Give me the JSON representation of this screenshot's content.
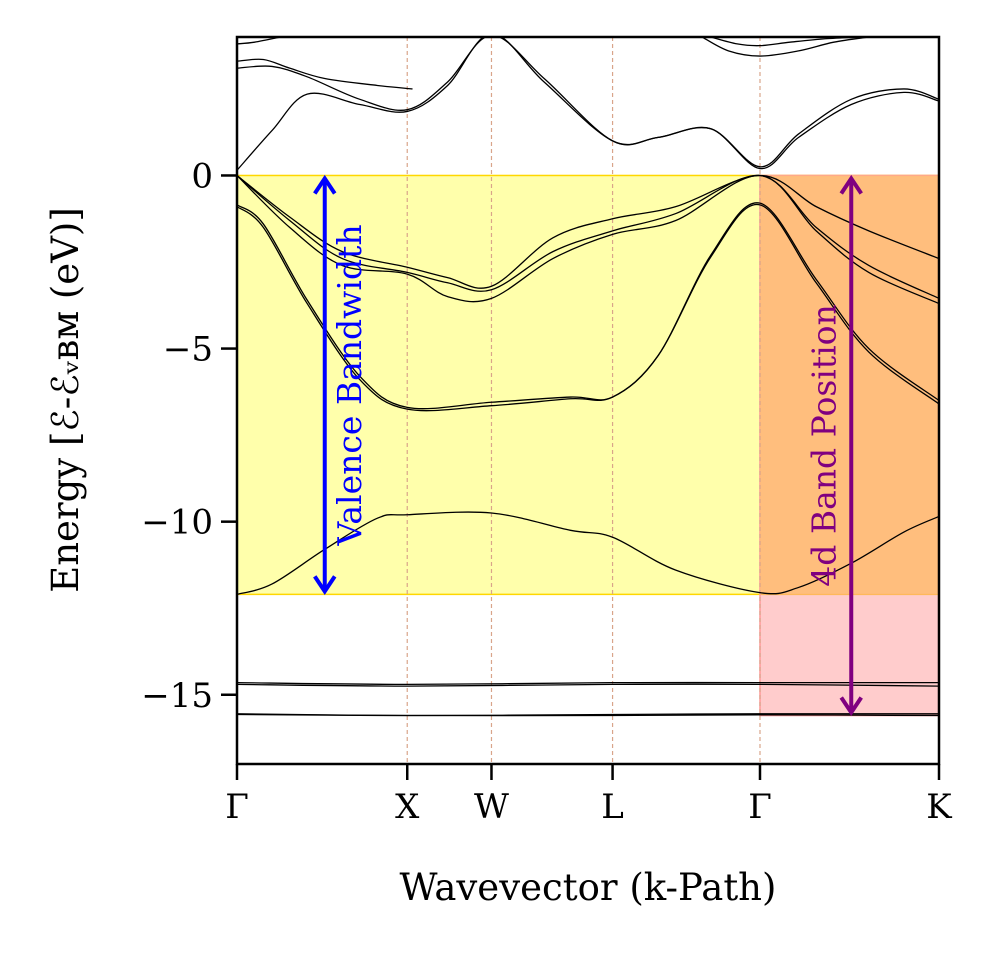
{
  "chart_data": {
    "type": "line",
    "title": "",
    "xlabel": "Wavevector (k-Path)",
    "ylabel": "Energy [ℰ-ℰᵥʙᴍ (eV)]",
    "ylim": [
      -17,
      4
    ],
    "xlim": [
      0,
      4.0
    ],
    "grid": false,
    "k_ticks": [
      {
        "label": "Γ",
        "x": 0.0
      },
      {
        "label": "X",
        "x": 0.97
      },
      {
        "label": "W",
        "x": 1.45
      },
      {
        "label": "L",
        "x": 2.14
      },
      {
        "label": "Γ",
        "x": 2.98
      },
      {
        "label": "K",
        "x": 4.0
      }
    ],
    "y_ticks": [
      {
        "label": "0",
        "value": 0
      },
      {
        "label": "−5",
        "value": -5
      },
      {
        "label": "−10",
        "value": -10
      },
      {
        "label": "−15",
        "value": -15
      }
    ],
    "colors": {
      "axes": "#000000",
      "band": "#000000",
      "k_line": "#d9a48a",
      "valence_fill": "#ffff66",
      "valence_edge": "#ffd700",
      "d_fill": "#ff9999",
      "d_overlap_fill": "#ffbb77",
      "valence_arrow": "#0000ff",
      "d_arrow": "#800080"
    },
    "regions": [
      {
        "name": "valence-band-region",
        "x0": 0.0,
        "x1": 4.0,
        "y0": -12.1,
        "y1": 0
      },
      {
        "name": "4d-band-region",
        "x0": 2.98,
        "x1": 4.0,
        "y0": -15.6,
        "y1": 0
      }
    ],
    "annotations": [
      {
        "text": "Valence Bandwidth",
        "x": 0.5,
        "y_top": 0,
        "y_bottom": -12.1,
        "color": "#0000ff"
      },
      {
        "text": "4d Band Position",
        "x": 3.5,
        "y_top": 0,
        "y_bottom": -15.6,
        "color": "#800080"
      }
    ],
    "series": [
      {
        "name": "semicore-1",
        "x": [
          0,
          0.97,
          2.14,
          2.98,
          4.0
        ],
        "y": [
          -15.55,
          -15.6,
          -15.57,
          -15.55,
          -15.55
        ]
      },
      {
        "name": "semicore-2",
        "x": [
          0,
          0.97,
          2.14,
          2.98,
          4.0
        ],
        "y": [
          -15.57,
          -15.6,
          -15.6,
          -15.58,
          -15.6
        ]
      },
      {
        "name": "semicore-3",
        "x": [
          0,
          0.97,
          2.14,
          2.98,
          4.0
        ],
        "y": [
          -14.7,
          -14.75,
          -14.7,
          -14.7,
          -14.75
        ]
      },
      {
        "name": "semicore-4",
        "x": [
          0,
          0.97,
          2.14,
          2.98,
          4.0
        ],
        "y": [
          -14.65,
          -14.7,
          -14.65,
          -14.65,
          -14.65
        ]
      },
      {
        "name": "valence-1",
        "x": [
          0,
          0.2,
          0.5,
          0.8,
          0.97,
          1.45,
          1.9,
          2.14,
          2.5,
          2.98,
          3.2,
          3.5,
          3.8,
          4.0
        ],
        "y": [
          -12.1,
          -11.8,
          -10.8,
          -9.9,
          -9.8,
          -9.75,
          -10.25,
          -10.45,
          -11.4,
          -12.05,
          -11.9,
          -11.2,
          -10.3,
          -9.85
        ]
      },
      {
        "name": "valence-2",
        "x": [
          0,
          0.15,
          0.4,
          0.7,
          0.97,
          1.45,
          1.9,
          2.14,
          2.4,
          2.7,
          2.98,
          3.3,
          3.6,
          4.0
        ],
        "y": [
          -0.85,
          -1.4,
          -3.6,
          -5.8,
          -6.7,
          -6.55,
          -6.4,
          -6.4,
          -5.2,
          -2.3,
          -0.8,
          -3.0,
          -5.0,
          -6.5
        ]
      },
      {
        "name": "valence-3",
        "x": [
          0,
          0.15,
          0.4,
          0.7,
          0.97,
          1.45,
          1.9,
          2.14,
          2.4,
          2.7,
          2.98,
          3.3,
          3.6,
          4.0
        ],
        "y": [
          -0.9,
          -1.5,
          -3.7,
          -5.9,
          -6.75,
          -6.65,
          -6.45,
          -6.4,
          -5.2,
          -2.35,
          -0.85,
          -3.1,
          -5.1,
          -6.6
        ]
      },
      {
        "name": "valence-4",
        "x": [
          0,
          0.3,
          0.6,
          0.97,
          1.2,
          1.45,
          1.8,
          2.14,
          2.5,
          2.98,
          3.3,
          3.6,
          4.0
        ],
        "y": [
          0,
          -1.3,
          -2.4,
          -2.8,
          -3.1,
          -3.3,
          -2.2,
          -1.6,
          -1.1,
          0,
          -1.5,
          -2.6,
          -3.55
        ]
      },
      {
        "name": "valence-5",
        "x": [
          0,
          0.3,
          0.6,
          0.97,
          1.2,
          1.45,
          1.8,
          2.14,
          2.5,
          2.98,
          3.3,
          3.6,
          4.0
        ],
        "y": [
          0,
          -1.5,
          -2.6,
          -2.85,
          -3.5,
          -3.55,
          -2.4,
          -1.7,
          -1.3,
          0,
          -1.6,
          -2.8,
          -3.7
        ]
      },
      {
        "name": "valence-6",
        "x": [
          0,
          0.3,
          0.6,
          0.97,
          1.2,
          1.45,
          1.8,
          2.14,
          2.5,
          2.98,
          3.3,
          3.6,
          4.0
        ],
        "y": [
          0,
          -1.2,
          -2.2,
          -2.65,
          -2.95,
          -3.2,
          -1.8,
          -1.25,
          -0.9,
          0,
          -0.9,
          -1.6,
          -2.4
        ]
      },
      {
        "name": "conduction-1",
        "x": [
          0,
          0.2,
          0.4,
          0.7,
          0.97,
          1.2,
          1.45,
          1.75,
          2.14,
          2.4,
          2.7,
          2.98,
          3.2,
          3.5,
          3.8,
          4.0
        ],
        "y": [
          0.15,
          1.3,
          2.35,
          2.05,
          1.85,
          2.6,
          4.1,
          2.7,
          1.0,
          1.1,
          1.35,
          0.2,
          1.1,
          2.05,
          2.4,
          2.15
        ]
      },
      {
        "name": "conduction-2",
        "x": [
          0,
          0.2,
          0.4,
          0.7,
          0.97,
          1.2,
          1.45,
          1.75,
          2.14,
          2.4,
          2.7,
          2.98,
          3.2,
          3.5,
          3.8,
          4.0
        ],
        "y": [
          3.1,
          3.15,
          2.85,
          2.2,
          1.9,
          2.7,
          4.05,
          2.8,
          1.0,
          1.1,
          1.35,
          0.25,
          1.2,
          2.2,
          2.5,
          2.2
        ]
      },
      {
        "name": "conduction-3",
        "x": [
          0,
          0.15,
          0.3,
          0.5,
          0.8,
          1.0
        ],
        "y": [
          3.3,
          3.35,
          3.1,
          2.8,
          2.6,
          2.5
        ]
      },
      {
        "name": "conduction-4",
        "x": [
          0,
          0.1,
          0.25
        ],
        "y": [
          3.8,
          3.85,
          4.0
        ]
      },
      {
        "name": "conduction-5",
        "x": [
          2.65,
          2.8,
          2.98,
          3.2,
          3.4,
          3.6
        ],
        "y": [
          4.0,
          3.6,
          3.45,
          3.6,
          3.85,
          4.0
        ]
      },
      {
        "name": "conduction-6",
        "x": [
          2.7,
          2.85,
          2.98,
          3.15,
          3.35,
          3.55
        ],
        "y": [
          4.0,
          3.8,
          3.75,
          3.85,
          3.95,
          4.0
        ]
      }
    ]
  }
}
